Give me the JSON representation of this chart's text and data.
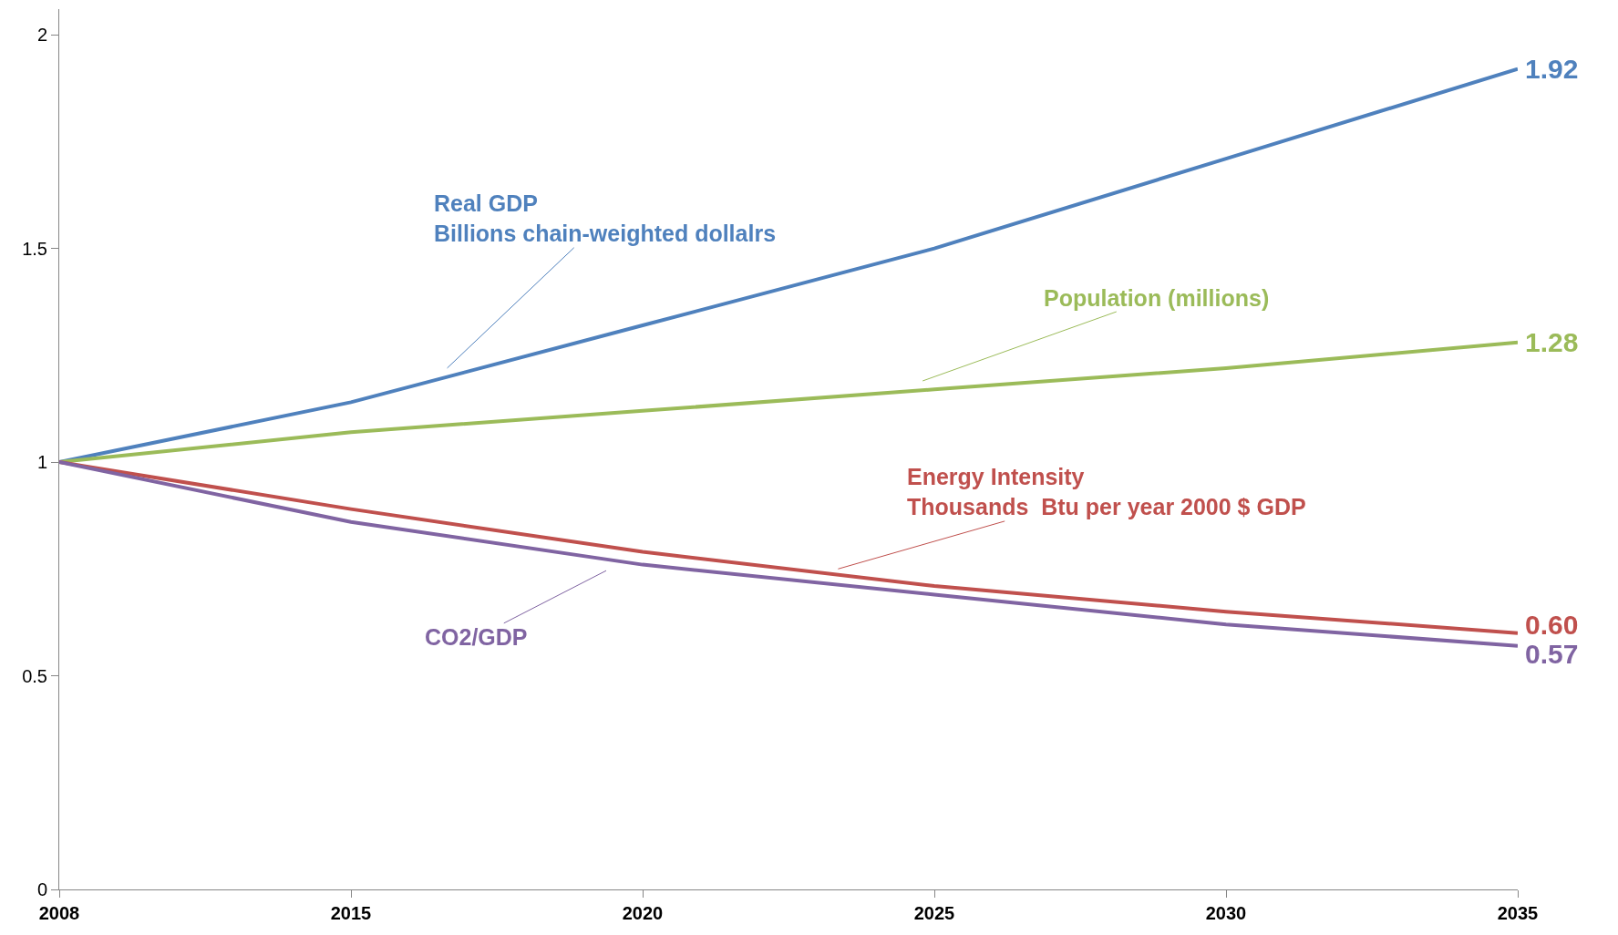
{
  "chart_data": {
    "type": "line",
    "categories": [
      "2008",
      "2015",
      "2020",
      "2025",
      "2030",
      "2035"
    ],
    "series": [
      {
        "name": "Real GDP\nBillions chain-weighted dollalrs",
        "color": "#4f81bd",
        "values": [
          1.0,
          1.14,
          1.32,
          1.5,
          1.71,
          1.92
        ],
        "value_labels": [
          null,
          null,
          null,
          null,
          null,
          "1.92"
        ]
      },
      {
        "name": "Population (millions)",
        "color": "#9bbb59",
        "values": [
          1.0,
          1.07,
          1.12,
          1.17,
          1.22,
          1.28
        ],
        "value_labels": [
          null,
          null,
          null,
          null,
          null,
          "1.28"
        ]
      },
      {
        "name": "Energy Intensity\nThousands  Btu per year 2000 $ GDP",
        "color": "#c0504d",
        "values": [
          1.0,
          0.89,
          0.79,
          0.71,
          0.65,
          0.6
        ],
        "value_labels": [
          null,
          null,
          null,
          null,
          null,
          "0.60"
        ]
      },
      {
        "name": "CO2/GDP",
        "color": "#8064a2",
        "values": [
          1.0,
          0.86,
          0.76,
          0.69,
          0.62,
          0.57
        ],
        "value_labels": [
          null,
          null,
          null,
          null,
          null,
          "0.57"
        ]
      }
    ],
    "ylim": [
      0,
      2.06
    ],
    "yticks": [
      0,
      0.5,
      1,
      1.5,
      2
    ],
    "legend": false,
    "marker": "none",
    "line_style": "solid"
  }
}
